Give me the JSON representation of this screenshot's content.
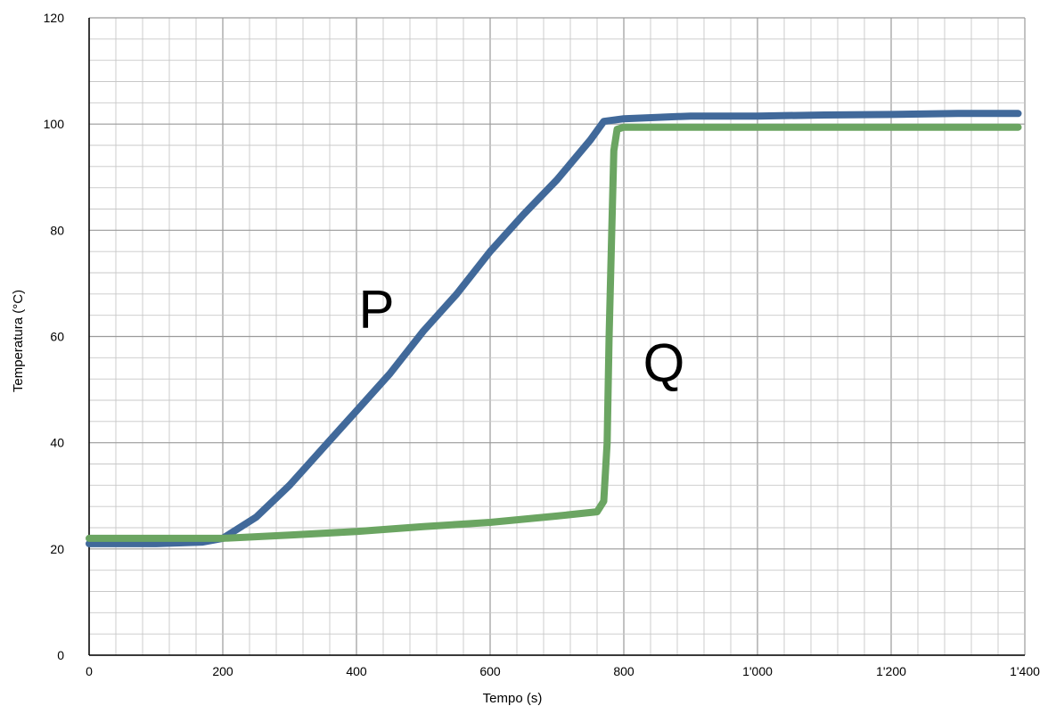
{
  "chart_data": {
    "type": "line",
    "title": "",
    "xlabel": "Tempo (s)",
    "ylabel": "Temperatura (°C)",
    "xlim": [
      0,
      1400
    ],
    "ylim": [
      0,
      120
    ],
    "x_ticks": [
      {
        "value": 0,
        "label": "0"
      },
      {
        "value": 200,
        "label": "200"
      },
      {
        "value": 400,
        "label": "400"
      },
      {
        "value": 600,
        "label": "600"
      },
      {
        "value": 800,
        "label": "800"
      },
      {
        "value": 1000,
        "label": "1'000"
      },
      {
        "value": 1200,
        "label": "1'200"
      },
      {
        "value": 1400,
        "label": "1'400"
      }
    ],
    "y_ticks": [
      {
        "value": 0,
        "label": "0"
      },
      {
        "value": 20,
        "label": "20"
      },
      {
        "value": 40,
        "label": "40"
      },
      {
        "value": 60,
        "label": "60"
      },
      {
        "value": 80,
        "label": "80"
      },
      {
        "value": 100,
        "label": "100"
      },
      {
        "value": 120,
        "label": "120"
      }
    ],
    "minor_grid_x": 40,
    "minor_grid_y": 4,
    "grid": true,
    "legend": "none",
    "series": [
      {
        "name": "P",
        "color": "#41699a",
        "x": [
          0,
          100,
          170,
          200,
          250,
          300,
          350,
          400,
          450,
          500,
          550,
          600,
          650,
          700,
          750,
          770,
          800,
          900,
          1000,
          1100,
          1200,
          1300,
          1390
        ],
        "y": [
          21,
          21,
          21.3,
          22,
          26,
          32,
          39,
          46,
          53,
          61,
          68,
          76,
          83,
          89.5,
          97,
          100.5,
          101,
          101.5,
          101.5,
          101.7,
          101.8,
          102,
          102
        ]
      },
      {
        "name": "Q",
        "color": "#6ba562",
        "x": [
          0,
          100,
          200,
          300,
          400,
          500,
          600,
          700,
          760,
          770,
          775,
          778,
          782,
          785,
          790,
          800,
          1000,
          1200,
          1390
        ],
        "y": [
          22,
          22,
          22,
          22.6,
          23.3,
          24.2,
          25,
          26.2,
          27,
          29,
          40,
          60,
          80,
          95,
          99,
          99.4,
          99.4,
          99.4,
          99.4
        ]
      }
    ],
    "annotations": [
      {
        "text": "P",
        "x": 430,
        "y": 65
      },
      {
        "text": "Q",
        "x": 860,
        "y": 55
      }
    ]
  }
}
